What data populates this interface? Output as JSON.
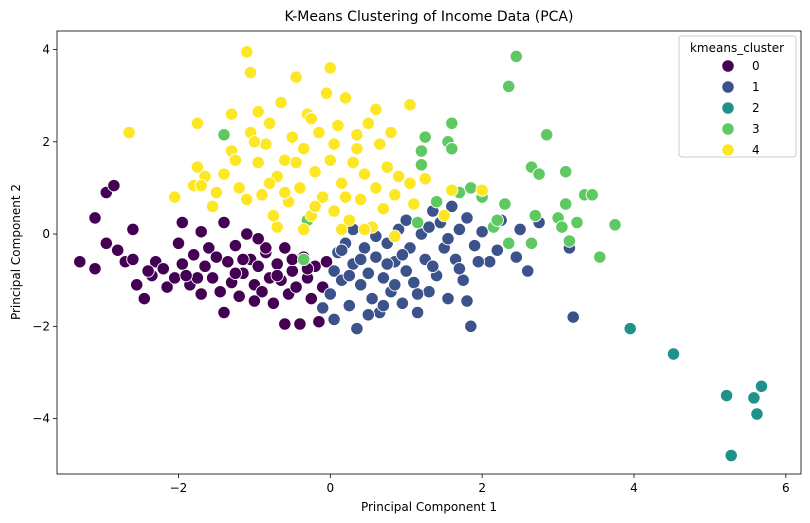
{
  "chart_data": {
    "type": "scatter",
    "title": "K-Means Clustering of Income Data (PCA)",
    "xlabel": "Principal Component 1",
    "ylabel": "Principal Component 2",
    "xlim": [
      -3.6,
      6.2
    ],
    "ylim": [
      -5.2,
      4.4
    ],
    "xticks": [
      -2,
      0,
      2,
      4,
      6
    ],
    "yticks": [
      -4,
      -2,
      0,
      2,
      4
    ],
    "xtick_labels": [
      "−2",
      "0",
      "2",
      "4",
      "6"
    ],
    "ytick_labels": [
      "−4",
      "−2",
      "0",
      "2",
      "4"
    ],
    "grid": false,
    "legend": {
      "title": "kmeans_cluster",
      "position": "top-right"
    },
    "series": [
      {
        "name": "0",
        "color": "#440154",
        "points": [
          [
            -3.3,
            -0.6
          ],
          [
            -3.1,
            -0.75
          ],
          [
            -3.1,
            0.35
          ],
          [
            -2.95,
            0.9
          ],
          [
            -2.85,
            1.05
          ],
          [
            -2.95,
            -0.2
          ],
          [
            -2.8,
            -0.35
          ],
          [
            -2.7,
            -0.6
          ],
          [
            -2.6,
            -0.55
          ],
          [
            -2.55,
            -1.1
          ],
          [
            -2.45,
            -1.4
          ],
          [
            -2.35,
            -0.9
          ],
          [
            -2.3,
            -0.6
          ],
          [
            -2.2,
            -0.75
          ],
          [
            -2.15,
            -1.15
          ],
          [
            -2.05,
            -0.95
          ],
          [
            -1.95,
            -0.65
          ],
          [
            -1.95,
            0.25
          ],
          [
            -1.85,
            -1.1
          ],
          [
            -1.8,
            -0.45
          ],
          [
            -1.75,
            -0.95
          ],
          [
            -1.7,
            0.05
          ],
          [
            -1.65,
            -0.7
          ],
          [
            -1.55,
            -0.95
          ],
          [
            -1.45,
            -1.25
          ],
          [
            -1.4,
            -1.7
          ],
          [
            -1.35,
            -0.6
          ],
          [
            -1.3,
            -1.05
          ],
          [
            -1.25,
            -0.25
          ],
          [
            -1.2,
            -1.35
          ],
          [
            -1.15,
            -0.85
          ],
          [
            -1.1,
            0.0
          ],
          [
            -1.05,
            -0.55
          ],
          [
            -1.0,
            -1.1
          ],
          [
            -0.95,
            -0.7
          ],
          [
            -0.9,
            -1.25
          ],
          [
            -0.85,
            -0.4
          ],
          [
            -0.8,
            -0.95
          ],
          [
            -0.75,
            -1.5
          ],
          [
            -0.7,
            -0.65
          ],
          [
            -0.65,
            -1.0
          ],
          [
            -0.6,
            -0.3
          ],
          [
            -0.55,
            -1.3
          ],
          [
            -0.5,
            -0.8
          ],
          [
            -0.45,
            -1.15
          ],
          [
            -0.4,
            -1.95
          ],
          [
            -0.35,
            -0.5
          ],
          [
            -0.3,
            -0.95
          ],
          [
            -0.25,
            -1.4
          ],
          [
            -0.2,
            -0.7
          ],
          [
            -0.15,
            -1.9
          ],
          [
            -0.1,
            -1.15
          ],
          [
            -0.6,
            -1.95
          ],
          [
            -0.05,
            -0.6
          ],
          [
            -1.4,
            0.25
          ],
          [
            -1.6,
            -0.3
          ],
          [
            -2.0,
            -0.2
          ],
          [
            -2.6,
            0.1
          ],
          [
            -1.15,
            -0.55
          ],
          [
            -0.85,
            -0.3
          ],
          [
            -0.95,
            -0.1
          ],
          [
            -1.5,
            -0.5
          ],
          [
            -1.25,
            -0.85
          ],
          [
            -0.7,
            -0.9
          ],
          [
            -0.5,
            -0.55
          ],
          [
            -0.3,
            -0.75
          ],
          [
            -1.9,
            -0.9
          ],
          [
            -2.4,
            -0.8
          ],
          [
            -1.7,
            -1.3
          ],
          [
            -1.0,
            -1.45
          ]
        ]
      },
      {
        "name": "1",
        "color": "#3b528b",
        "points": [
          [
            -0.1,
            -1.6
          ],
          [
            0.0,
            -1.3
          ],
          [
            0.05,
            -0.8
          ],
          [
            0.1,
            -0.4
          ],
          [
            0.15,
            -1.0
          ],
          [
            0.2,
            -0.2
          ],
          [
            0.25,
            -1.55
          ],
          [
            0.3,
            -0.65
          ],
          [
            0.35,
            -2.05
          ],
          [
            0.4,
            -1.1
          ],
          [
            0.45,
            -0.3
          ],
          [
            0.5,
            -0.85
          ],
          [
            0.55,
            -1.4
          ],
          [
            0.6,
            -0.5
          ],
          [
            0.65,
            -1.7
          ],
          [
            0.7,
            -0.95
          ],
          [
            0.75,
            -0.2
          ],
          [
            0.8,
            -1.25
          ],
          [
            0.85,
            -0.6
          ],
          [
            0.9,
            0.1
          ],
          [
            0.95,
            -1.5
          ],
          [
            1.0,
            -0.8
          ],
          [
            1.05,
            -0.3
          ],
          [
            1.1,
            -1.05
          ],
          [
            1.15,
            -1.7
          ],
          [
            1.2,
            0.0
          ],
          [
            1.25,
            -0.55
          ],
          [
            1.3,
            -1.25
          ],
          [
            1.35,
            0.5
          ],
          [
            1.4,
            -0.9
          ],
          [
            1.45,
            0.25
          ],
          [
            1.5,
            -0.3
          ],
          [
            1.55,
            -1.4
          ],
          [
            1.6,
            0.6
          ],
          [
            1.65,
            -0.55
          ],
          [
            1.7,
            0.1
          ],
          [
            1.75,
            -1.0
          ],
          [
            1.8,
            0.35
          ],
          [
            1.85,
            -2.0
          ],
          [
            1.9,
            -0.25
          ],
          [
            2.0,
            0.05
          ],
          [
            2.1,
            -0.6
          ],
          [
            2.25,
            0.3
          ],
          [
            2.35,
            -0.2
          ],
          [
            2.45,
            -0.5
          ],
          [
            2.5,
            0.1
          ],
          [
            2.6,
            -0.8
          ],
          [
            2.75,
            0.25
          ],
          [
            1.8,
            -1.45
          ],
          [
            3.15,
            -0.3
          ],
          [
            3.2,
            -1.8
          ],
          [
            0.6,
            -0.05
          ],
          [
            0.3,
            0.1
          ],
          [
            1.0,
            0.3
          ],
          [
            1.3,
            0.15
          ],
          [
            0.4,
            -0.55
          ],
          [
            0.15,
            -0.35
          ],
          [
            0.95,
            -0.45
          ],
          [
            1.55,
            -0.1
          ],
          [
            1.7,
            -0.75
          ],
          [
            0.7,
            -1.55
          ],
          [
            1.15,
            -1.3
          ],
          [
            0.05,
            -1.85
          ],
          [
            0.5,
            -1.75
          ],
          [
            0.85,
            -1.1
          ],
          [
            1.35,
            -0.7
          ],
          [
            1.95,
            -0.6
          ],
          [
            2.2,
            -0.35
          ],
          [
            0.25,
            -0.9
          ],
          [
            0.75,
            -0.65
          ]
        ]
      },
      {
        "name": "2",
        "color": "#21918c",
        "points": [
          [
            3.95,
            -2.05
          ],
          [
            4.52,
            -2.6
          ],
          [
            5.22,
            -3.5
          ],
          [
            5.28,
            -4.8
          ],
          [
            5.58,
            -3.55
          ],
          [
            5.62,
            -3.9
          ],
          [
            5.68,
            -3.3
          ]
        ]
      },
      {
        "name": "3",
        "color": "#5ec962",
        "points": [
          [
            -1.4,
            2.15
          ],
          [
            -0.3,
            0.3
          ],
          [
            -0.35,
            -0.55
          ],
          [
            1.2,
            1.5
          ],
          [
            1.25,
            2.1
          ],
          [
            1.2,
            1.8
          ],
          [
            1.6,
            2.4
          ],
          [
            1.55,
            2.0
          ],
          [
            1.6,
            1.85
          ],
          [
            1.7,
            0.9
          ],
          [
            1.85,
            1.0
          ],
          [
            2.0,
            0.8
          ],
          [
            2.15,
            0.15
          ],
          [
            2.3,
            0.65
          ],
          [
            2.35,
            -0.2
          ],
          [
            2.35,
            3.2
          ],
          [
            2.45,
            3.85
          ],
          [
            2.65,
            1.45
          ],
          [
            2.7,
            0.4
          ],
          [
            2.75,
            1.3
          ],
          [
            2.85,
            2.15
          ],
          [
            3.0,
            0.35
          ],
          [
            3.05,
            0.15
          ],
          [
            3.1,
            0.65
          ],
          [
            3.1,
            1.35
          ],
          [
            3.15,
            -0.15
          ],
          [
            3.25,
            0.25
          ],
          [
            3.35,
            0.85
          ],
          [
            3.45,
            0.85
          ],
          [
            3.55,
            -0.5
          ],
          [
            3.75,
            0.2
          ],
          [
            2.65,
            -0.2
          ],
          [
            1.4,
            0.7
          ],
          [
            2.2,
            0.3
          ],
          [
            1.15,
            0.25
          ]
        ]
      },
      {
        "name": "4",
        "color": "#fde725",
        "points": [
          [
            -2.65,
            2.2
          ],
          [
            -1.75,
            2.4
          ],
          [
            -1.8,
            1.05
          ],
          [
            -1.75,
            1.45
          ],
          [
            -1.65,
            1.25
          ],
          [
            -1.5,
            0.9
          ],
          [
            -1.4,
            1.3
          ],
          [
            -1.3,
            1.8
          ],
          [
            -1.3,
            2.6
          ],
          [
            -1.2,
            1.0
          ],
          [
            -1.1,
            3.95
          ],
          [
            -1.05,
            3.5
          ],
          [
            -1.05,
            2.2
          ],
          [
            -0.95,
            1.55
          ],
          [
            -0.95,
            2.65
          ],
          [
            -0.9,
            0.85
          ],
          [
            -0.85,
            1.95
          ],
          [
            -0.8,
            2.4
          ],
          [
            -0.75,
            0.4
          ],
          [
            -0.7,
            1.25
          ],
          [
            -0.65,
            2.85
          ],
          [
            -0.6,
            1.6
          ],
          [
            -0.55,
            0.7
          ],
          [
            -0.5,
            2.1
          ],
          [
            -0.45,
            3.4
          ],
          [
            -0.4,
            1.0
          ],
          [
            -0.35,
            1.85
          ],
          [
            -0.3,
            2.6
          ],
          [
            -0.25,
            0.4
          ],
          [
            -0.2,
            1.35
          ],
          [
            -0.15,
            2.2
          ],
          [
            -0.1,
            0.8
          ],
          [
            -0.05,
            3.05
          ],
          [
            0.0,
            1.6
          ],
          [
            0.0,
            3.6
          ],
          [
            0.05,
            0.5
          ],
          [
            0.1,
            2.35
          ],
          [
            0.15,
            1.1
          ],
          [
            0.2,
            2.95
          ],
          [
            0.25,
            0.3
          ],
          [
            0.3,
            1.55
          ],
          [
            0.35,
            2.15
          ],
          [
            0.4,
            0.75
          ],
          [
            0.45,
            1.3
          ],
          [
            0.5,
            2.4
          ],
          [
            0.55,
            0.15
          ],
          [
            0.6,
            1.0
          ],
          [
            0.65,
            1.95
          ],
          [
            0.7,
            0.55
          ],
          [
            0.75,
            1.45
          ],
          [
            0.8,
            2.2
          ],
          [
            0.85,
            0.85
          ],
          [
            0.9,
            1.25
          ],
          [
            1.05,
            1.1
          ],
          [
            1.05,
            2.8
          ],
          [
            1.1,
            0.65
          ],
          [
            -1.7,
            1.05
          ],
          [
            -2.05,
            0.8
          ],
          [
            -1.1,
            0.75
          ],
          [
            -0.6,
            0.9
          ],
          [
            -0.2,
            0.6
          ],
          [
            0.2,
            0.8
          ],
          [
            0.45,
            0.1
          ],
          [
            -0.35,
            0.1
          ],
          [
            -0.8,
            1.1
          ],
          [
            -1.25,
            1.6
          ],
          [
            0.85,
            -0.05
          ],
          [
            1.25,
            1.2
          ],
          [
            1.5,
            0.4
          ],
          [
            2.0,
            0.95
          ],
          [
            -0.45,
            1.55
          ],
          [
            0.05,
            1.95
          ],
          [
            -1.55,
            0.6
          ],
          [
            -1.0,
            2.0
          ],
          [
            0.6,
            2.7
          ],
          [
            -0.25,
            2.5
          ],
          [
            0.35,
            1.85
          ],
          [
            -0.7,
            0.15
          ],
          [
            0.15,
            0.1
          ],
          [
            1.6,
            0.95
          ]
        ]
      }
    ]
  }
}
